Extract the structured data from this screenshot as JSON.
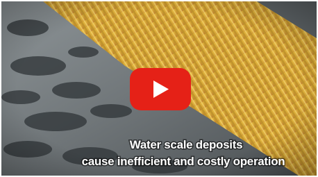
{
  "caption": {
    "line1": "Water scale deposits",
    "line2": "cause inefficient and costly operation"
  }
}
